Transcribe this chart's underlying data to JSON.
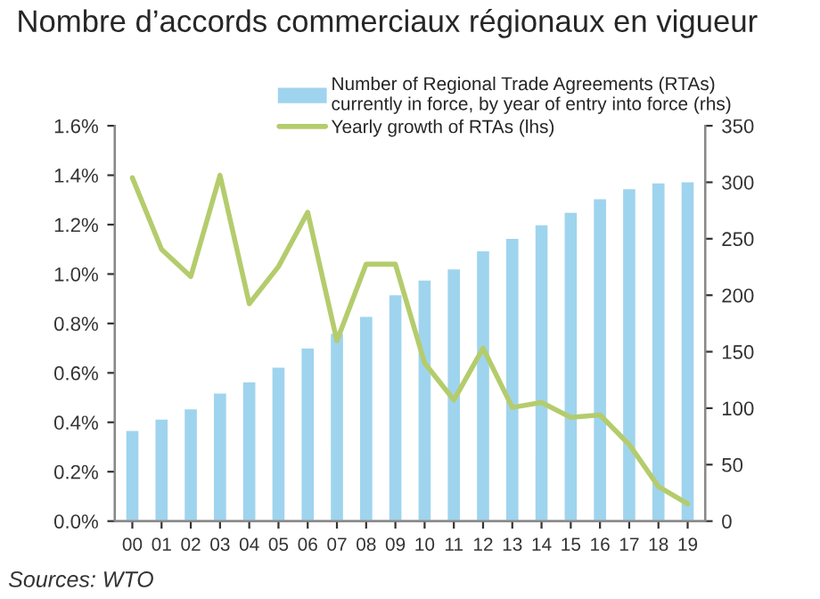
{
  "chart_data": {
    "type": "bar",
    "title": "Nombre d’accords commerciaux régionaux en vigueur",
    "categories": [
      "00",
      "01",
      "02",
      "03",
      "04",
      "05",
      "06",
      "07",
      "08",
      "09",
      "10",
      "11",
      "12",
      "13",
      "14",
      "15",
      "16",
      "17",
      "18",
      "19"
    ],
    "series": [
      {
        "name": "Number of Regional Trade Agreements (RTAs)\ncurrently in force, by year of entry into force (rhs)",
        "axis": "y2",
        "color": "#9fd4ee",
        "values": [
          81,
          91,
          100,
          114,
          124,
          137,
          154,
          167,
          182,
          201,
          214,
          224,
          240,
          251,
          263,
          274,
          286,
          295,
          300,
          301
        ]
      },
      {
        "name": "Yearly growth of RTAs (lhs)",
        "type": "line",
        "color": "#b4cc6c",
        "values": [
          1.39,
          1.1,
          0.99,
          1.4,
          0.88,
          1.03,
          1.25,
          0.73,
          1.04,
          1.04,
          0.64,
          0.49,
          0.7,
          0.46,
          0.48,
          0.42,
          0.43,
          0.31,
          0.14,
          0.07
        ]
      }
    ],
    "ylim": [
      0,
      1.6
    ],
    "yticks": [
      {
        "value": 0,
        "label": "0.0%"
      },
      {
        "value": 0.2,
        "label": "0.2%"
      },
      {
        "value": 0.4,
        "label": "0.4%"
      },
      {
        "value": 0.6,
        "label": "0.6%"
      },
      {
        "value": 0.8,
        "label": "0.8%"
      },
      {
        "value": 1.0,
        "label": "1.0%"
      },
      {
        "value": 1.2,
        "label": "1.2%"
      },
      {
        "value": 1.4,
        "label": "1.4%"
      },
      {
        "value": 1.6,
        "label": "1.6%"
      }
    ],
    "y2lim": [
      0,
      350
    ],
    "y2ticks": [
      0,
      50,
      100,
      150,
      200,
      250,
      300,
      350
    ],
    "grid": false,
    "legend": "top",
    "marker": "none",
    "line_style": "solid",
    "annotations": [
      "Sources: WTO"
    ]
  }
}
